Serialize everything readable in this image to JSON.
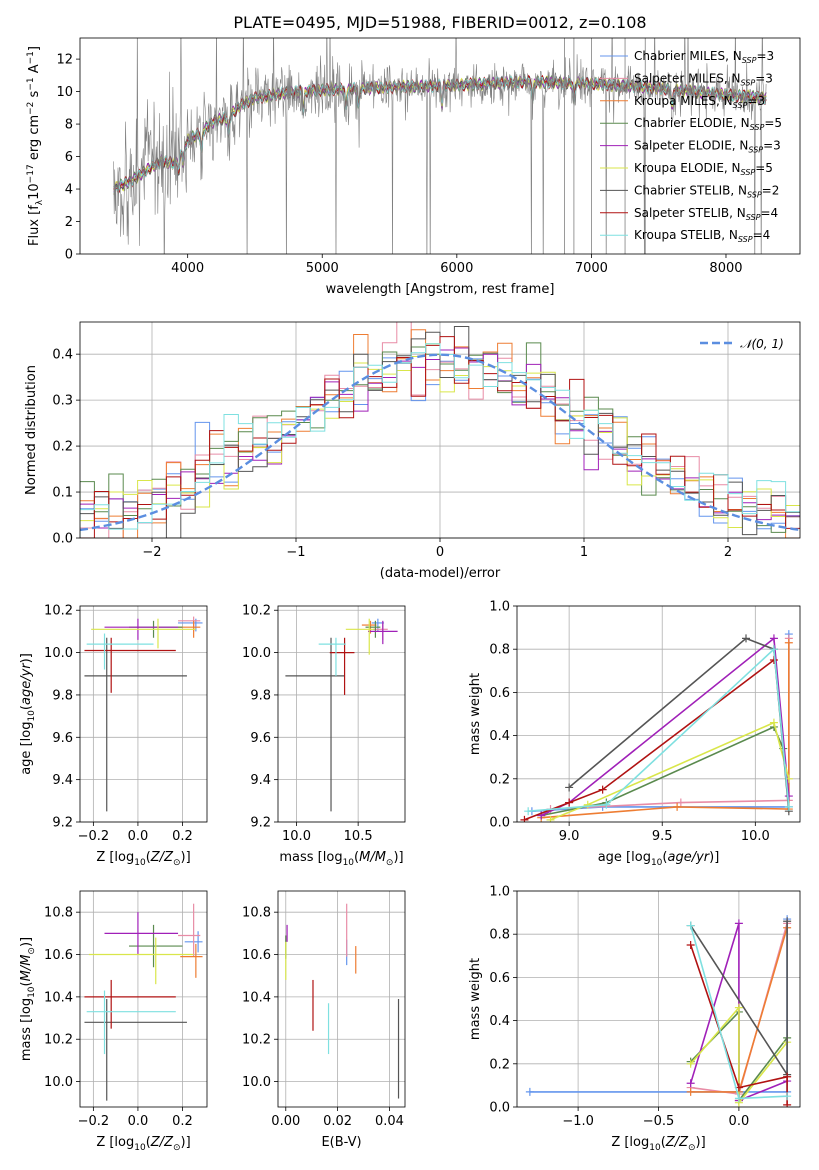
{
  "figure_title": "PLATE=0495, MJD=51988, FIBERID=0012, z=0.108",
  "colors": {
    "Chabrier MILES": "#6495ed",
    "Salpeter MILES": "#e88ca6",
    "Kroupa MILES": "#ee7d33",
    "Chabrier ELODIE": "#5a8a4e",
    "Salpeter ELODIE": "#a020b8",
    "Kroupa ELODIE": "#d9e64a",
    "Chabrier STELIB": "#555555",
    "Salpeter STELIB": "#b01212",
    "Kroupa STELIB": "#7fe0e0",
    "data": "#808080",
    "normal": "#5b8ee0"
  },
  "chart_data": [
    {
      "id": "spectrum",
      "type": "line",
      "title": "PLATE=0495, MJD=51988, FIBERID=0012, z=0.108",
      "xlabel": "wavelength [Angstrom, rest frame]",
      "ylabel": "Flux [f_λ 10^-17 erg cm^-2 s^-1 A^-1]",
      "xlim": [
        3200,
        8550
      ],
      "ylim": [
        0,
        13.3
      ],
      "xticks": [
        4000,
        5000,
        6000,
        7000,
        8000
      ],
      "yticks": [
        0,
        2,
        4,
        6,
        8,
        10,
        12
      ],
      "grid": false,
      "legend_position": "right",
      "legend": [
        "Chabrier MILES, N_SSP=3",
        "Salpeter MILES, N_SSP=3",
        "Kroupa MILES, N_SSP=3",
        "Chabrier ELODIE, N_SSP=5",
        "Salpeter ELODIE, N_SSP=3",
        "Kroupa ELODIE, N_SSP=5",
        "Chabrier STELIB, N_SSP=2",
        "Salpeter STELIB, N_SSP=4",
        "Kroupa STELIB, N_SSP=4"
      ],
      "continuum": {
        "x": [
          3450,
          3600,
          3700,
          3800,
          3900,
          4000,
          4100,
          4200,
          4300,
          4400,
          4500,
          4700,
          5000,
          5300,
          5600,
          6000,
          6500,
          7000,
          7500,
          8000,
          8300
        ],
        "y": [
          4.0,
          4.6,
          5.2,
          5.7,
          5.6,
          7.0,
          7.5,
          8.2,
          8.4,
          9.2,
          9.6,
          9.9,
          10.1,
          10.2,
          10.3,
          10.4,
          10.6,
          10.5,
          10.2,
          9.8,
          9.6
        ]
      },
      "absorption_lines": [
        3934,
        3969,
        4102,
        4304,
        4861,
        5175,
        5270,
        5890,
        6563,
        6870,
        7600
      ]
    },
    {
      "id": "residuals",
      "type": "bar",
      "xlabel": "(data-model)/error",
      "ylabel": "Normed distribution",
      "xlim": [
        -2.5,
        2.5
      ],
      "ylim": [
        0,
        0.47
      ],
      "xticks": [
        -2,
        -1,
        0,
        1,
        2
      ],
      "yticks": [
        0.0,
        0.1,
        0.2,
        0.3,
        0.4
      ],
      "grid": true,
      "legend_position": "top-right",
      "legend": [
        "𝒩(0, 1)"
      ],
      "bin_edges": [
        -2.5,
        2.5
      ],
      "bins": 50,
      "normal_pdf": {
        "mu": 0,
        "sigma": 1
      }
    },
    {
      "id": "age_vs_Z",
      "type": "scatter",
      "xlabel": "Z [log10(Z/Z⊙)]",
      "ylabel": "age [log10(age/yr)]",
      "xlim": [
        -0.26,
        0.31
      ],
      "ylim": [
        9.2,
        10.22
      ],
      "xticks": [
        -0.2,
        0.0,
        0.2
      ],
      "yticks": [
        9.2,
        9.4,
        9.6,
        9.8,
        10.0,
        10.2
      ],
      "grid": true,
      "points": [
        {
          "model": "Chabrier MILES",
          "x": 0.26,
          "xerr": [
            0.08,
            0.03
          ],
          "y": 10.14,
          "yerr": [
            0.04,
            0.02
          ]
        },
        {
          "model": "Salpeter MILES",
          "x": 0.25,
          "xerr": [
            0.07,
            0.03
          ],
          "y": 10.15,
          "yerr": [
            0.05,
            0.02
          ]
        },
        {
          "model": "Kroupa MILES",
          "x": 0.25,
          "xerr": [
            0.07,
            0.03
          ],
          "y": 10.12,
          "yerr": [
            0.05,
            0.03
          ]
        },
        {
          "model": "Chabrier ELODIE",
          "x": 0.07,
          "xerr": [
            0.11,
            0.13
          ],
          "y": 10.12,
          "yerr": [
            0.05,
            0.03
          ]
        },
        {
          "model": "Salpeter ELODIE",
          "x": 0.0,
          "xerr": [
            0.15,
            0.18
          ],
          "y": 10.12,
          "yerr": [
            0.06,
            0.04
          ]
        },
        {
          "model": "Kroupa ELODIE",
          "x": 0.09,
          "xerr": [
            0.3,
            0.17
          ],
          "y": 10.11,
          "yerr": [
            0.09,
            0.05
          ]
        },
        {
          "model": "Chabrier STELIB",
          "x": -0.14,
          "xerr": [
            0.1,
            0.36
          ],
          "y": 9.89,
          "yerr": [
            0.64,
            0.18
          ]
        },
        {
          "model": "Salpeter STELIB",
          "x": -0.12,
          "xerr": [
            0.12,
            0.29
          ],
          "y": 10.01,
          "yerr": [
            0.2,
            0.06
          ]
        },
        {
          "model": "Kroupa STELIB",
          "x": -0.15,
          "xerr": [
            0.08,
            0.22
          ],
          "y": 10.04,
          "yerr": [
            0.12,
            0.05
          ]
        }
      ]
    },
    {
      "id": "age_vs_mass",
      "type": "scatter",
      "xlabel": "mass [log10(M/M⊙)]",
      "ylabel": "",
      "xlim": [
        9.85,
        10.88
      ],
      "ylim": [
        9.2,
        10.22
      ],
      "xticks": [
        10.0,
        10.5
      ],
      "yticks": [
        9.2,
        9.4,
        9.6,
        9.8,
        10.0,
        10.2
      ],
      "grid": true,
      "points": [
        {
          "model": "Chabrier MILES",
          "x": 10.66,
          "xerr": [
            0.05,
            0.05
          ],
          "y": 10.14,
          "yerr": [
            0.04,
            0.02
          ]
        },
        {
          "model": "Salpeter MILES",
          "x": 10.7,
          "xerr": [
            0.08,
            0.04
          ],
          "y": 10.11,
          "yerr": [
            0.05,
            0.03
          ]
        },
        {
          "model": "Kroupa MILES",
          "x": 10.6,
          "xerr": [
            0.07,
            0.05
          ],
          "y": 10.13,
          "yerr": [
            0.04,
            0.02
          ]
        },
        {
          "model": "Chabrier ELODIE",
          "x": 10.64,
          "xerr": [
            0.08,
            0.04
          ],
          "y": 10.12,
          "yerr": [
            0.05,
            0.03
          ]
        },
        {
          "model": "Salpeter ELODIE",
          "x": 10.7,
          "xerr": [
            0.12,
            0.12
          ],
          "y": 10.1,
          "yerr": [
            0.06,
            0.05
          ]
        },
        {
          "model": "Kroupa ELODIE",
          "x": 10.59,
          "xerr": [
            0.19,
            0.04
          ],
          "y": 10.11,
          "yerr": [
            0.12,
            0.05
          ]
        },
        {
          "model": "Chabrier STELIB",
          "x": 10.28,
          "xerr": [
            0.37,
            0.11
          ],
          "y": 9.89,
          "yerr": [
            0.64,
            0.18
          ]
        },
        {
          "model": "Salpeter STELIB",
          "x": 10.39,
          "xerr": [
            0.12,
            0.08
          ],
          "y": 10.0,
          "yerr": [
            0.2,
            0.07
          ]
        },
        {
          "model": "Kroupa STELIB",
          "x": 10.32,
          "xerr": [
            0.14,
            0.08
          ],
          "y": 10.04,
          "yerr": [
            0.15,
            0.03
          ]
        }
      ]
    },
    {
      "id": "weight_vs_age",
      "type": "line",
      "xlabel": "age [log10(age/yr)]",
      "ylabel": "mass weight",
      "xlim": [
        8.72,
        10.24
      ],
      "ylim": [
        0,
        1.0
      ],
      "xticks": [
        9.0,
        9.5,
        10.0
      ],
      "yticks": [
        0.0,
        0.2,
        0.4,
        0.6,
        0.8,
        1.0
      ],
      "grid": true,
      "series": [
        {
          "model": "Chabrier MILES",
          "x": [
            8.8,
            9.18,
            10.18,
            10.18
          ],
          "y": [
            0.05,
            0.07,
            0.07,
            0.87
          ]
        },
        {
          "model": "Salpeter MILES",
          "x": [
            8.9,
            9.6,
            10.18,
            10.18
          ],
          "y": [
            0.06,
            0.09,
            0.1,
            0.85
          ]
        },
        {
          "model": "Kroupa MILES",
          "x": [
            8.85,
            9.58,
            10.18,
            10.18
          ],
          "y": [
            0.02,
            0.07,
            0.06,
            0.83
          ]
        },
        {
          "model": "Chabrier ELODIE",
          "x": [
            8.85,
            9.2,
            10.1,
            10.15
          ],
          "y": [
            0.03,
            0.09,
            0.44,
            0.34
          ]
        },
        {
          "model": "Salpeter ELODIE",
          "x": [
            8.85,
            9.0,
            10.1,
            10.18
          ],
          "y": [
            0.03,
            0.09,
            0.85,
            0.12
          ]
        },
        {
          "model": "Kroupa ELODIE",
          "x": [
            8.9,
            9.1,
            10.1,
            10.18
          ],
          "y": [
            0.01,
            0.08,
            0.46,
            0.2
          ]
        },
        {
          "model": "Chabrier STELIB",
          "x": [
            9.0,
            9.95,
            10.1,
            10.18
          ],
          "y": [
            0.16,
            0.85,
            0.8,
            0.05
          ]
        },
        {
          "model": "Salpeter STELIB",
          "x": [
            8.76,
            9.0,
            9.18,
            10.1
          ],
          "y": [
            0.01,
            0.09,
            0.15,
            0.75
          ]
        },
        {
          "model": "Kroupa STELIB",
          "x": [
            8.78,
            9.2,
            10.1,
            10.18
          ],
          "y": [
            0.05,
            0.08,
            0.8,
            0.07
          ]
        }
      ]
    },
    {
      "id": "mass_vs_Z",
      "type": "scatter",
      "xlabel": "Z [log10(Z/Z⊙)]",
      "ylabel": "mass [log10(M/M⊙)]",
      "xlim": [
        -0.26,
        0.31
      ],
      "ylim": [
        9.88,
        10.9
      ],
      "xticks": [
        -0.2,
        0.0,
        0.2
      ],
      "yticks": [
        10.0,
        10.2,
        10.4,
        10.6,
        10.8
      ],
      "grid": true,
      "points": [
        {
          "model": "Chabrier MILES",
          "x": 0.27,
          "xerr": [
            0.06,
            0.02
          ],
          "y": 10.66,
          "yerr": [
            0.05,
            0.05
          ]
        },
        {
          "model": "Salpeter MILES",
          "x": 0.25,
          "xerr": [
            0.07,
            0.03
          ],
          "y": 10.69,
          "yerr": [
            0.1,
            0.15
          ]
        },
        {
          "model": "Kroupa MILES",
          "x": 0.26,
          "xerr": [
            0.07,
            0.03
          ],
          "y": 10.59,
          "yerr": [
            0.1,
            0.06
          ]
        },
        {
          "model": "Chabrier ELODIE",
          "x": 0.07,
          "xerr": [
            0.11,
            0.13
          ],
          "y": 10.64,
          "yerr": [
            0.1,
            0.1
          ]
        },
        {
          "model": "Salpeter ELODIE",
          "x": 0.0,
          "xerr": [
            0.15,
            0.18
          ],
          "y": 10.7,
          "yerr": [
            0.1,
            0.1
          ]
        },
        {
          "model": "Kroupa ELODIE",
          "x": 0.08,
          "xerr": [
            0.3,
            0.17
          ],
          "y": 10.6,
          "yerr": [
            0.14,
            0.08
          ]
        },
        {
          "model": "Chabrier STELIB",
          "x": -0.14,
          "xerr": [
            0.1,
            0.36
          ],
          "y": 10.28,
          "yerr": [
            0.37,
            0.11
          ]
        },
        {
          "model": "Salpeter STELIB",
          "x": -0.12,
          "xerr": [
            0.12,
            0.29
          ],
          "y": 10.4,
          "yerr": [
            0.15,
            0.08
          ]
        },
        {
          "model": "Kroupa STELIB",
          "x": -0.15,
          "xerr": [
            0.08,
            0.32
          ],
          "y": 10.33,
          "yerr": [
            0.2,
            0.1
          ]
        }
      ]
    },
    {
      "id": "mass_vs_ebv",
      "type": "scatter",
      "xlabel": "E(B-V)",
      "ylabel": "",
      "xlim": [
        -0.003,
        0.046
      ],
      "ylim": [
        9.88,
        10.9
      ],
      "xticks": [
        0.0,
        0.02,
        0.04
      ],
      "yticks": [
        10.0,
        10.2,
        10.4,
        10.6,
        10.8
      ],
      "grid": true,
      "points": [
        {
          "model": "Chabrier MILES",
          "x": 0.0235,
          "y": 10.62,
          "yerr": [
            0.07,
            0.05
          ]
        },
        {
          "model": "Salpeter MILES",
          "x": 0.0235,
          "y": 10.69,
          "yerr": [
            0.1,
            0.15
          ]
        },
        {
          "model": "Kroupa MILES",
          "x": 0.027,
          "y": 10.58,
          "yerr": [
            0.07,
            0.06
          ]
        },
        {
          "model": "Chabrier ELODIE",
          "x": 0.0,
          "y": 10.64,
          "yerr": [
            0.06,
            0.05
          ]
        },
        {
          "model": "Salpeter ELODIE",
          "x": 0.0005,
          "y": 10.7,
          "yerr": [
            0.04,
            0.04
          ]
        },
        {
          "model": "Kroupa ELODIE",
          "x": 0.0,
          "y": 10.56,
          "yerr": [
            0.08,
            0.1
          ]
        },
        {
          "model": "Chabrier STELIB",
          "x": 0.0435,
          "y": 10.17,
          "yerr": [
            0.25,
            0.22
          ]
        },
        {
          "model": "Salpeter STELIB",
          "x": 0.0105,
          "y": 10.37,
          "yerr": [
            0.13,
            0.11
          ]
        },
        {
          "model": "Kroupa STELIB",
          "x": 0.0165,
          "y": 10.25,
          "yerr": [
            0.12,
            0.12
          ]
        }
      ]
    },
    {
      "id": "weight_vs_Z",
      "type": "line",
      "xlabel": "Z [log10(Z/Z⊙)]",
      "ylabel": "mass weight",
      "xlim": [
        -1.38,
        0.38
      ],
      "ylim": [
        0,
        1.0
      ],
      "xticks": [
        -1.0,
        -0.5,
        0.0
      ],
      "yticks": [
        0.0,
        0.2,
        0.4,
        0.6,
        0.8,
        1.0
      ],
      "grid": true,
      "series": [
        {
          "model": "Chabrier MILES",
          "x": [
            -1.3,
            0.0,
            0.3,
            0.3
          ],
          "y": [
            0.07,
            0.07,
            0.07,
            0.87
          ]
        },
        {
          "model": "Salpeter MILES",
          "x": [
            -0.3,
            0.0,
            0.3
          ],
          "y": [
            0.09,
            0.06,
            0.85
          ]
        },
        {
          "model": "Kroupa MILES",
          "x": [
            -0.3,
            0.0,
            0.3
          ],
          "y": [
            0.07,
            0.07,
            0.83
          ]
        },
        {
          "model": "Chabrier ELODIE",
          "x": [
            -0.3,
            0.0,
            0.0,
            0.3
          ],
          "y": [
            0.21,
            0.44,
            0.03,
            0.32
          ]
        },
        {
          "model": "Salpeter ELODIE",
          "x": [
            -0.3,
            0.0,
            0.0,
            0.3
          ],
          "y": [
            0.11,
            0.85,
            0.03,
            0.12
          ]
        },
        {
          "model": "Kroupa ELODIE",
          "x": [
            -0.3,
            0.0,
            0.0,
            0.3
          ],
          "y": [
            0.2,
            0.46,
            0.02,
            0.3
          ]
        },
        {
          "model": "Chabrier STELIB",
          "x": [
            -0.3,
            0.3,
            0.3
          ],
          "y": [
            0.84,
            0.15,
            0.86
          ]
        },
        {
          "model": "Salpeter STELIB",
          "x": [
            -0.3,
            0.0,
            0.3,
            0.3
          ],
          "y": [
            0.75,
            0.09,
            0.14,
            0.01
          ]
        },
        {
          "model": "Kroupa STELIB",
          "x": [
            -0.3,
            0.0,
            0.3
          ],
          "y": [
            0.84,
            0.04,
            0.05
          ]
        }
      ]
    }
  ]
}
